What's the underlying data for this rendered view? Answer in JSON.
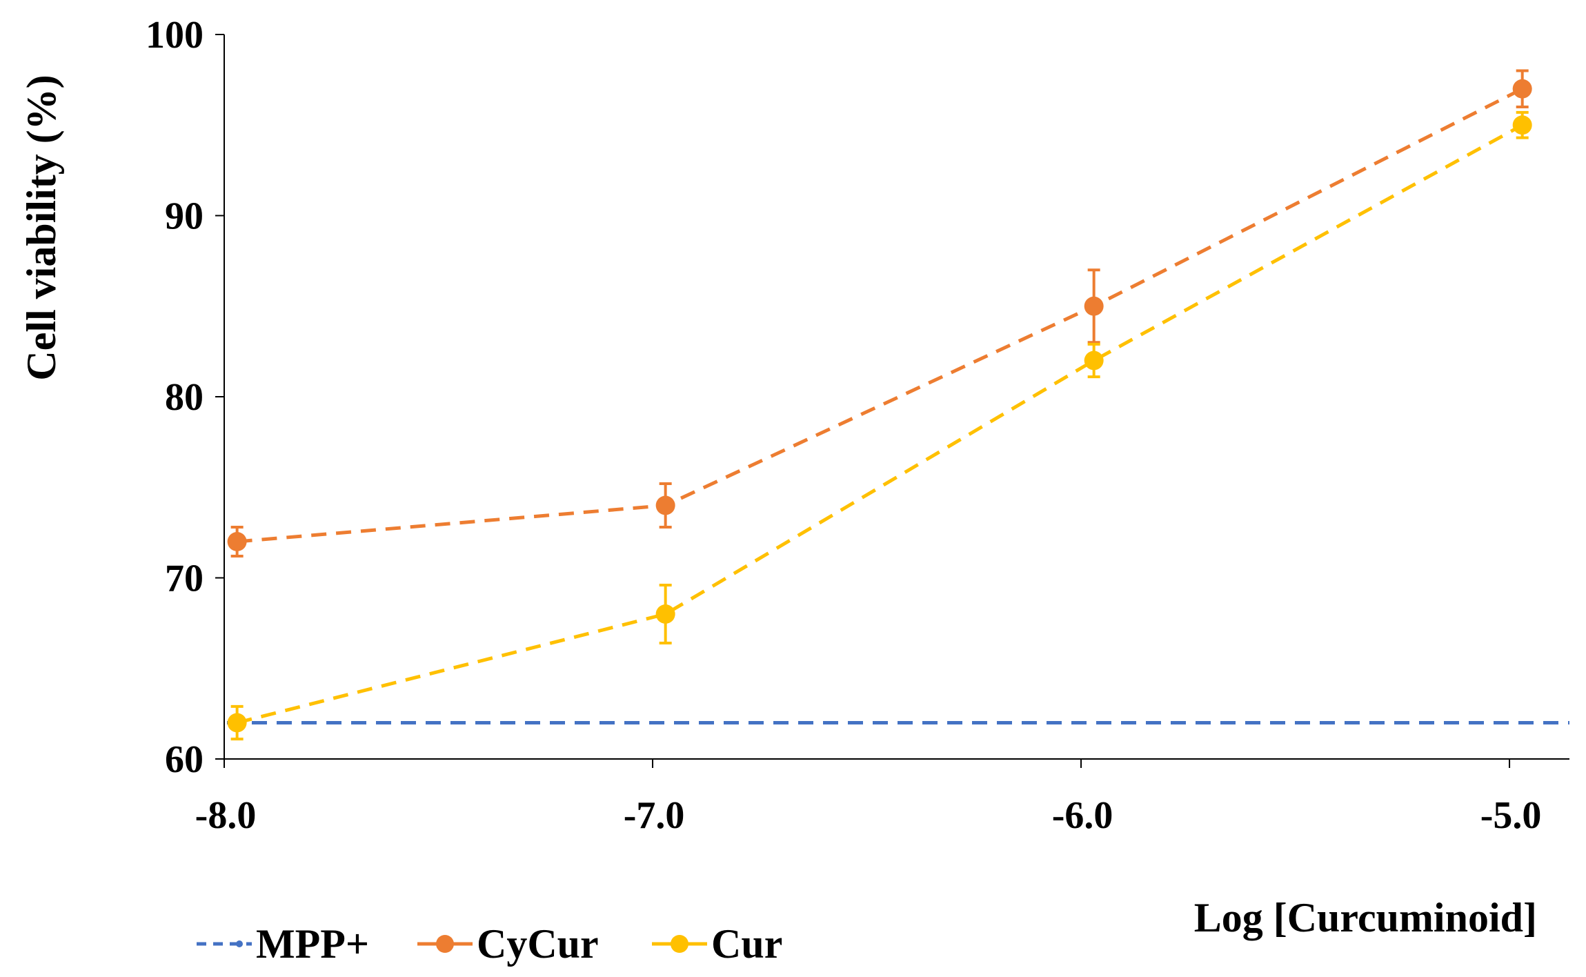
{
  "chart_data": {
    "type": "line",
    "title": "",
    "xlabel": "Log [Curcuminoid]",
    "ylabel": "Cell viability (%)",
    "xlim": [
      -8.0,
      -4.86
    ],
    "ylim": [
      60,
      100
    ],
    "grid": false,
    "legend_position": "bottom-left",
    "x": [
      -7.97,
      -6.97,
      -5.97,
      -4.97
    ],
    "xticks": [
      -8.0,
      -7.0,
      -6.0,
      -5.0
    ],
    "xtick_labels": [
      "-8.0",
      "-7.0",
      "-6.0",
      "-5.0"
    ],
    "yticks": [
      60,
      70,
      80,
      90,
      100
    ],
    "ytick_labels": [
      "60",
      "70",
      "80",
      "90",
      "100"
    ],
    "series": [
      {
        "name": "MPP+",
        "color": "#4472C4",
        "style": "dashed",
        "marker": "none",
        "reference_line": true,
        "values": [
          62,
          62,
          62,
          62
        ],
        "errors": [
          0,
          0,
          0,
          0
        ]
      },
      {
        "name": "CyCur",
        "color": "#ED7D31",
        "style": "dashed",
        "marker": "circle",
        "reference_line": false,
        "values": [
          72,
          74,
          85,
          97
        ],
        "errors": [
          0.8,
          1.2,
          2.0,
          1.0
        ]
      },
      {
        "name": "Cur",
        "color": "#FFC000",
        "style": "dashed",
        "marker": "circle",
        "reference_line": false,
        "values": [
          62,
          68,
          82,
          95
        ],
        "errors": [
          0.9,
          1.6,
          0.9,
          0.7
        ]
      }
    ]
  }
}
